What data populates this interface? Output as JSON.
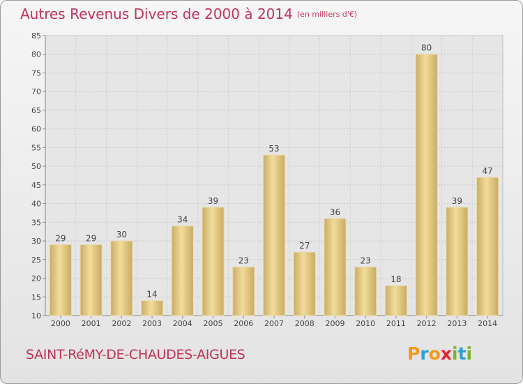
{
  "header": {
    "title": "Autres Revenus Divers de 2000 à 2014",
    "unit": "(en milliers d'€)"
  },
  "footer": {
    "city": "SAINT-RéMY-DE-CHAUDES-AIGUES",
    "logo_letters": [
      "P",
      "r",
      "o",
      "x",
      "i",
      "t",
      "i"
    ],
    "logo_colors": [
      "#f39a1e",
      "#2f9fd8",
      "#f39a1e",
      "#e2252f",
      "#7ab42b",
      "#2f9fd8",
      "#7ab42b"
    ]
  },
  "chart_data": {
    "type": "bar",
    "title": "Autres Revenus Divers de 2000 à 2014",
    "subtitle": "(en milliers d'€)",
    "categories": [
      "2000",
      "2001",
      "2002",
      "2003",
      "2004",
      "2005",
      "2006",
      "2007",
      "2008",
      "2009",
      "2010",
      "2011",
      "2012",
      "2013",
      "2014"
    ],
    "values": [
      29,
      29,
      30,
      14,
      34,
      39,
      23,
      53,
      27,
      36,
      23,
      18,
      80,
      39,
      47
    ],
    "ylim": [
      10,
      85
    ],
    "yticks": [
      10,
      15,
      20,
      25,
      30,
      35,
      40,
      45,
      50,
      55,
      60,
      65,
      70,
      75,
      80,
      85
    ],
    "grid": true,
    "bar_color": "#e3c987"
  }
}
